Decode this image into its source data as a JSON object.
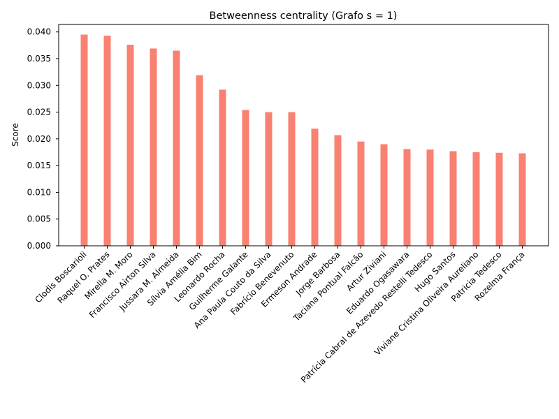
{
  "chart_data": {
    "type": "bar",
    "title": "Betweenness centrality (Grafo s = 1)",
    "xlabel": "",
    "ylabel": "Score",
    "ylim": [
      0,
      0.0414
    ],
    "yticks": [
      "0.000",
      "0.005",
      "0.010",
      "0.015",
      "0.020",
      "0.025",
      "0.030",
      "0.035",
      "0.040"
    ],
    "grid": false,
    "bar_color": "#fa8072",
    "categories": [
      "Clodis Boscarioli",
      "Raquel O. Prates",
      "Mirella M. Moro",
      "Francisco Airton Silva",
      "Jussara M. Almeida",
      "Sílvia Amélia Bim",
      "Leonardo Rocha",
      "Guilherme Galante",
      "Ana Paula Couto da Silva",
      "Fabrício Benevenuto",
      "Ermeson Andrade",
      "Jorge Barbosa",
      "Taciana Pontual Falcão",
      "Artur Ziviani",
      "Eduardo Ogasawara",
      "Patrícia Cabral de Azevedo Restelli Tedesco",
      "Hugo Santos",
      "Viviane Cristina Oliveira Aureliano",
      "Patricia Tedesco",
      "Rozelma França"
    ],
    "values": [
      0.0395,
      0.0393,
      0.0376,
      0.0369,
      0.0365,
      0.0319,
      0.0292,
      0.0254,
      0.025,
      0.025,
      0.0219,
      0.0207,
      0.0195,
      0.019,
      0.0181,
      0.018,
      0.0177,
      0.0175,
      0.0174,
      0.0173
    ]
  }
}
